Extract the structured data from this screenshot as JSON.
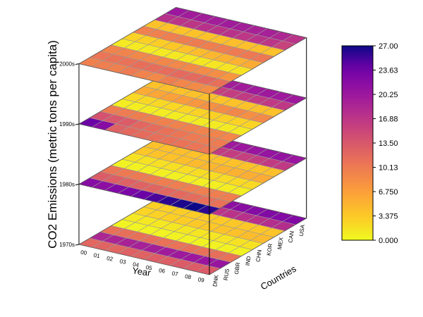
{
  "chart_data": {
    "type": "heatmap",
    "subtype": "stacked-3d-heatmap-layers",
    "zlabel": "CO2 Emissions (metric tons per capita)",
    "xlabel": "Year",
    "ylabel": "Countries",
    "years": [
      "00",
      "01",
      "02",
      "03",
      "04",
      "05",
      "06",
      "07",
      "08",
      "09"
    ],
    "countries": [
      "DNK",
      "RUS",
      "GBR",
      "IND",
      "CHN",
      "KOR",
      "MEX",
      "CAN",
      "USA"
    ],
    "decades": [
      "1970s",
      "1980s",
      "1990s",
      "2000s"
    ],
    "colorbar": {
      "min": 0.0,
      "max": 27.0,
      "ticks": [
        "0.000",
        "3.375",
        "6.750",
        "10.13",
        "13.50",
        "16.88",
        "20.25",
        "23.63",
        "27.00"
      ],
      "colormap": "plasma-reversed"
    },
    "layers": [
      {
        "decade": "1970s",
        "rows": [
          {
            "country": "DNK",
            "values": [
              12.0,
              12.3,
              12.1,
              12.6,
              12.4,
              12.8,
              12.7,
              13.0,
              12.9,
              13.1
            ]
          },
          {
            "country": "RUS",
            "values": [
              18.5,
              18.8,
              19.0,
              19.2,
              19.5,
              19.8,
              20.0,
              20.2,
              20.5,
              20.7
            ]
          },
          {
            "country": "GBR",
            "values": [
              11.0,
              11.2,
              11.1,
              11.3,
              11.0,
              10.9,
              11.2,
              11.1,
              11.3,
              11.0
            ]
          },
          {
            "country": "IND",
            "values": [
              0.4,
              0.4,
              0.4,
              0.4,
              0.5,
              0.5,
              0.5,
              0.5,
              0.5,
              0.5
            ]
          },
          {
            "country": "CHN",
            "values": [
              1.1,
              1.2,
              1.2,
              1.3,
              1.3,
              1.4,
              1.4,
              1.5,
              1.6,
              1.6
            ]
          },
          {
            "country": "KOR",
            "values": [
              2.5,
              2.7,
              2.9,
              3.1,
              3.3,
              3.5,
              3.8,
              4.0,
              4.3,
              4.5
            ]
          },
          {
            "country": "MEX",
            "values": [
              2.8,
              2.9,
              3.0,
              3.1,
              3.2,
              3.3,
              3.4,
              3.5,
              3.6,
              3.7
            ]
          },
          {
            "country": "CAN",
            "values": [
              16.0,
              16.3,
              16.5,
              16.8,
              17.0,
              17.2,
              17.4,
              17.5,
              17.7,
              17.8
            ]
          },
          {
            "country": "USA",
            "values": [
              21.0,
              21.5,
              21.8,
              22.0,
              21.5,
              21.8,
              22.2,
              22.5,
              22.3,
              22.6
            ]
          }
        ]
      },
      {
        "decade": "1980s",
        "rows": [
          {
            "country": "DNK",
            "values": [
              22.0,
              21.5,
              22.5,
              23.0,
              24.0,
              25.0,
              26.0,
              26.5,
              27.0,
              26.0
            ]
          },
          {
            "country": "RUS",
            "values": [
              13.0,
              12.8,
              12.5,
              12.4,
              12.2,
              12.0,
              11.8,
              11.5,
              11.2,
              11.0
            ]
          },
          {
            "country": "GBR",
            "values": [
              10.5,
              10.3,
              10.2,
              10.0,
              9.9,
              9.8,
              9.8,
              9.7,
              9.8,
              9.9
            ]
          },
          {
            "country": "IND",
            "values": [
              0.5,
              0.5,
              0.6,
              0.6,
              0.6,
              0.7,
              0.7,
              0.7,
              0.8,
              0.8
            ]
          },
          {
            "country": "CHN",
            "values": [
              1.6,
              1.6,
              1.7,
              1.8,
              1.9,
              2.0,
              2.0,
              2.1,
              2.2,
              2.2
            ]
          },
          {
            "country": "KOR",
            "values": [
              3.5,
              3.8,
              4.0,
              4.2,
              4.5,
              4.8,
              5.0,
              5.2,
              5.5,
              5.8
            ]
          },
          {
            "country": "MEX",
            "values": [
              4.0,
              4.1,
              4.1,
              4.0,
              4.0,
              3.9,
              3.9,
              4.0,
              4.0,
              4.1
            ]
          },
          {
            "country": "CAN",
            "values": [
              17.5,
              17.0,
              16.5,
              16.0,
              16.2,
              16.0,
              15.8,
              16.0,
              16.3,
              16.5
            ]
          },
          {
            "country": "USA",
            "values": [
              20.5,
              20.0,
              19.5,
              19.8,
              20.0,
              20.2,
              20.5,
              20.8,
              21.0,
              20.5
            ]
          }
        ]
      },
      {
        "decade": "1990s",
        "rows": [
          {
            "country": "DNK",
            "values": [
              24.0,
              22.0,
              12.5,
              11.8,
              11.5,
              11.2,
              11.0,
              10.8,
              10.6,
              10.4
            ]
          },
          {
            "country": "RUS",
            "values": [
              14.0,
              13.5,
              13.0,
              12.0,
              11.5,
              11.0,
              10.5,
              10.2,
              10.0,
              10.1
            ]
          },
          {
            "country": "GBR",
            "values": [
              10.0,
              10.1,
              9.9,
              9.7,
              9.5,
              9.4,
              9.6,
              9.3,
              9.2,
              9.1
            ]
          },
          {
            "country": "IND",
            "values": [
              0.8,
              0.8,
              0.9,
              0.9,
              0.9,
              1.0,
              1.0,
              1.0,
              1.0,
              1.1
            ]
          },
          {
            "country": "CHN",
            "values": [
              2.2,
              2.3,
              2.3,
              2.4,
              2.5,
              2.7,
              2.8,
              2.8,
              2.7,
              2.6
            ]
          },
          {
            "country": "KOR",
            "values": [
              5.8,
              6.2,
              6.6,
              7.0,
              7.5,
              8.0,
              8.5,
              9.0,
              8.2,
              8.8
            ]
          },
          {
            "country": "MEX",
            "values": [
              4.0,
              4.1,
              4.0,
              4.0,
              4.1,
              3.8,
              3.9,
              4.0,
              4.1,
              4.0
            ]
          },
          {
            "country": "CAN",
            "values": [
              15.5,
              15.3,
              15.5,
              15.6,
              15.8,
              16.0,
              16.3,
              16.5,
              16.5,
              16.6
            ]
          },
          {
            "country": "USA",
            "values": [
              19.5,
              19.2,
              19.3,
              19.5,
              19.6,
              19.7,
              20.0,
              20.1,
              20.0,
              20.1
            ]
          }
        ]
      },
      {
        "decade": "2000s",
        "rows": [
          {
            "country": "DNK",
            "values": [
              9.5,
              9.8,
              9.6,
              10.2,
              9.3,
              8.8,
              9.9,
              9.1,
              8.7,
              8.4
            ]
          },
          {
            "country": "RUS",
            "values": [
              10.6,
              10.8,
              10.9,
              11.2,
              11.3,
              11.4,
              11.7,
              11.7,
              12.0,
              11.1
            ]
          },
          {
            "country": "GBR",
            "values": [
              9.2,
              9.3,
              9.0,
              9.1,
              9.0,
              8.9,
              8.8,
              8.6,
              8.4,
              7.6
            ]
          },
          {
            "country": "IND",
            "values": [
              1.1,
              1.1,
              1.1,
              1.1,
              1.2,
              1.2,
              1.3,
              1.4,
              1.5,
              1.6
            ]
          },
          {
            "country": "CHN",
            "values": [
              2.7,
              2.8,
              3.0,
              3.5,
              4.0,
              4.4,
              4.9,
              5.2,
              5.3,
              5.8
            ]
          },
          {
            "country": "KOR",
            "values": [
              9.5,
              9.5,
              9.8,
              9.9,
              10.0,
              9.7,
              9.8,
              10.1,
              10.3,
              10.4
            ]
          },
          {
            "country": "MEX",
            "values": [
              3.9,
              3.9,
              3.8,
              3.9,
              4.0,
              4.1,
              4.2,
              4.1,
              4.2,
              4.0
            ]
          },
          {
            "country": "CAN",
            "values": [
              17.4,
              17.1,
              16.8,
              17.4,
              17.2,
              17.3,
              16.7,
              17.3,
              16.9,
              15.5
            ]
          },
          {
            "country": "USA",
            "values": [
              20.2,
              19.7,
              19.6,
              19.6,
              19.8,
              19.5,
              19.1,
              19.2,
              18.5,
              17.2
            ]
          }
        ]
      }
    ]
  }
}
